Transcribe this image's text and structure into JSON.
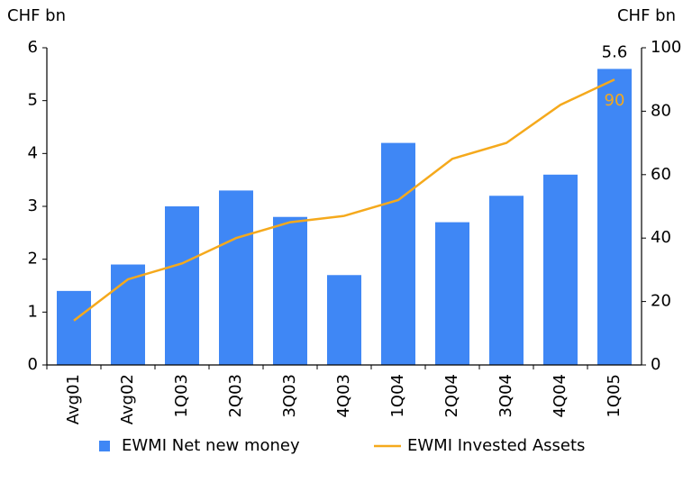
{
  "chart_data": {
    "type": "bar-line",
    "y_label": "CHF bn",
    "y2_label": "CHF bn",
    "categories": [
      "Avg01",
      "Avg02",
      "1Q03",
      "2Q03",
      "3Q03",
      "4Q03",
      "1Q04",
      "2Q04",
      "3Q04",
      "4Q04",
      "1Q05"
    ],
    "series": [
      {
        "name": "EWMI Net new money",
        "type": "bar",
        "color": "#3f87f5",
        "values": [
          1.4,
          1.9,
          3.0,
          3.3,
          2.8,
          1.7,
          4.2,
          2.7,
          3.2,
          3.6,
          5.6
        ],
        "value_labels": [
          null,
          null,
          null,
          null,
          null,
          null,
          null,
          null,
          null,
          null,
          "5.6"
        ],
        "label_color": "#000000"
      },
      {
        "name": "EWMI Invested Assets",
        "type": "line",
        "axis": "y2",
        "color": "#f5a91c",
        "values": [
          14,
          27,
          32,
          40,
          45,
          47,
          52,
          65,
          70,
          82,
          90
        ],
        "value_labels": [
          null,
          null,
          null,
          null,
          null,
          null,
          null,
          null,
          null,
          null,
          "90"
        ],
        "label_color": "#f5a91c"
      }
    ],
    "ylim": [
      0,
      6
    ],
    "yticks": [
      0,
      1,
      2,
      3,
      4,
      5,
      6
    ],
    "y2lim": [
      0,
      100
    ],
    "y2ticks": [
      0,
      20,
      40,
      60,
      80,
      100
    ],
    "legend": "bottom"
  }
}
